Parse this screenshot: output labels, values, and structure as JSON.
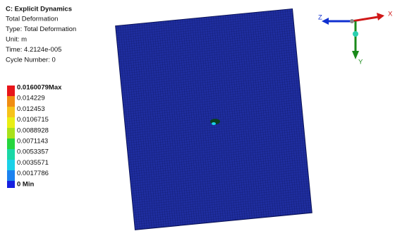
{
  "header": {
    "title": "C: Explicit Dynamics",
    "lines": [
      "Total Deformation",
      "Type: Total Deformation",
      "Unit: m",
      "Time: 4.2124e-005",
      "Cycle Number: 0"
    ]
  },
  "legend": {
    "labels": [
      "0.0160079Max",
      "0.014229",
      "0.012453",
      "0.0106715",
      "0.0088928",
      "0.0071143",
      "0.0053357",
      "0.0035571",
      "0.0017786",
      "0 Min"
    ]
  },
  "triad": {
    "x_label": "X",
    "y_label": "Y",
    "z_label": "Z"
  }
}
